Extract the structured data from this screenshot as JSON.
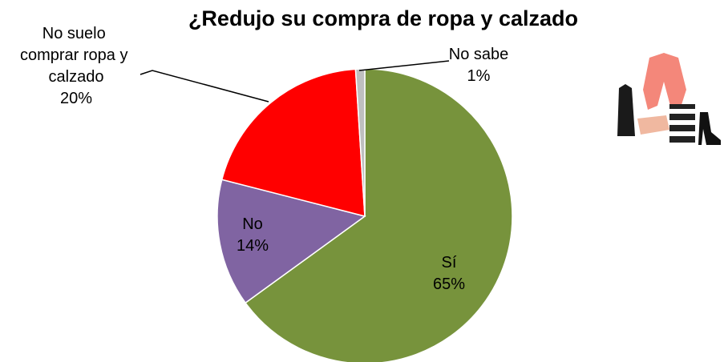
{
  "chart_data": {
    "type": "pie",
    "title": "¿Redujo su compra de ropa y calzado",
    "categories": [
      "Sí",
      "No",
      "No suelo comprar ropa y calzado",
      "No sabe"
    ],
    "values": [
      65,
      14,
      20,
      1
    ],
    "value_labels": [
      "65%",
      "14%",
      "20%",
      "1%"
    ],
    "colors": [
      "#77933c",
      "#8064a2",
      "#ff0000",
      "#bfbfbf"
    ]
  }
}
